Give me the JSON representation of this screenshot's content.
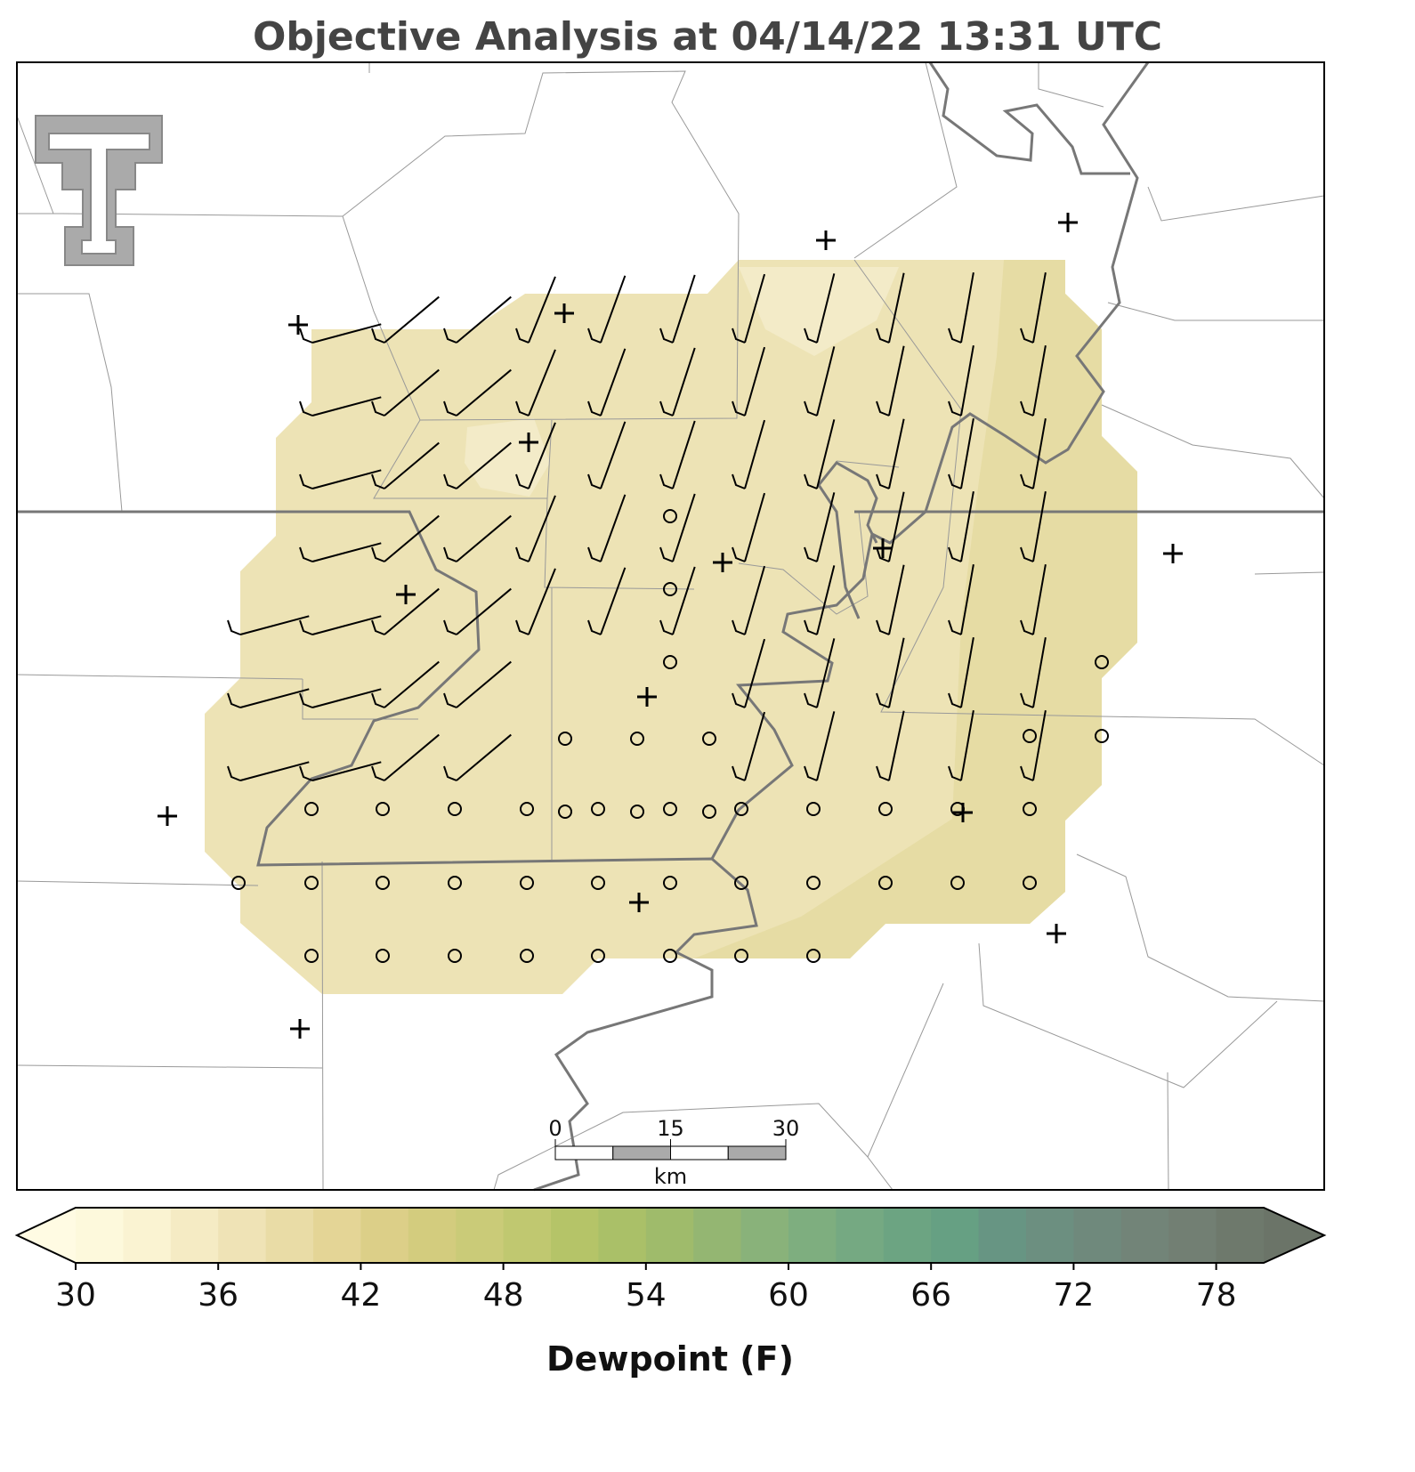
{
  "title": "Objective Analysis at 04/14/22 13:31 UTC",
  "colorbar": {
    "label": "Dewpoint (F)",
    "lim": [
      30,
      80
    ],
    "ticks": [
      30,
      36,
      42,
      48,
      54,
      60,
      66,
      72,
      78
    ],
    "colors": [
      "#fdf9dc",
      "#faf3d2",
      "#f5ebc4",
      "#efe3b6",
      "#e9dca6",
      "#e4d596",
      "#dccf88",
      "#d3cc7e",
      "#cacb78",
      "#c0c870",
      "#b5c468",
      "#aac068",
      "#9fbb6b",
      "#94b672",
      "#89b27a",
      "#7eae7f",
      "#75a982",
      "#6ca482",
      "#66a083",
      "#679583",
      "#6c8f80",
      "#6f897c",
      "#728478",
      "#727f73",
      "#6e796c"
    ],
    "under": "#fffbe3",
    "over": "#6b7468"
  },
  "scale_bar": {
    "ticks": [
      0,
      15,
      30
    ],
    "unit": "km"
  }
}
